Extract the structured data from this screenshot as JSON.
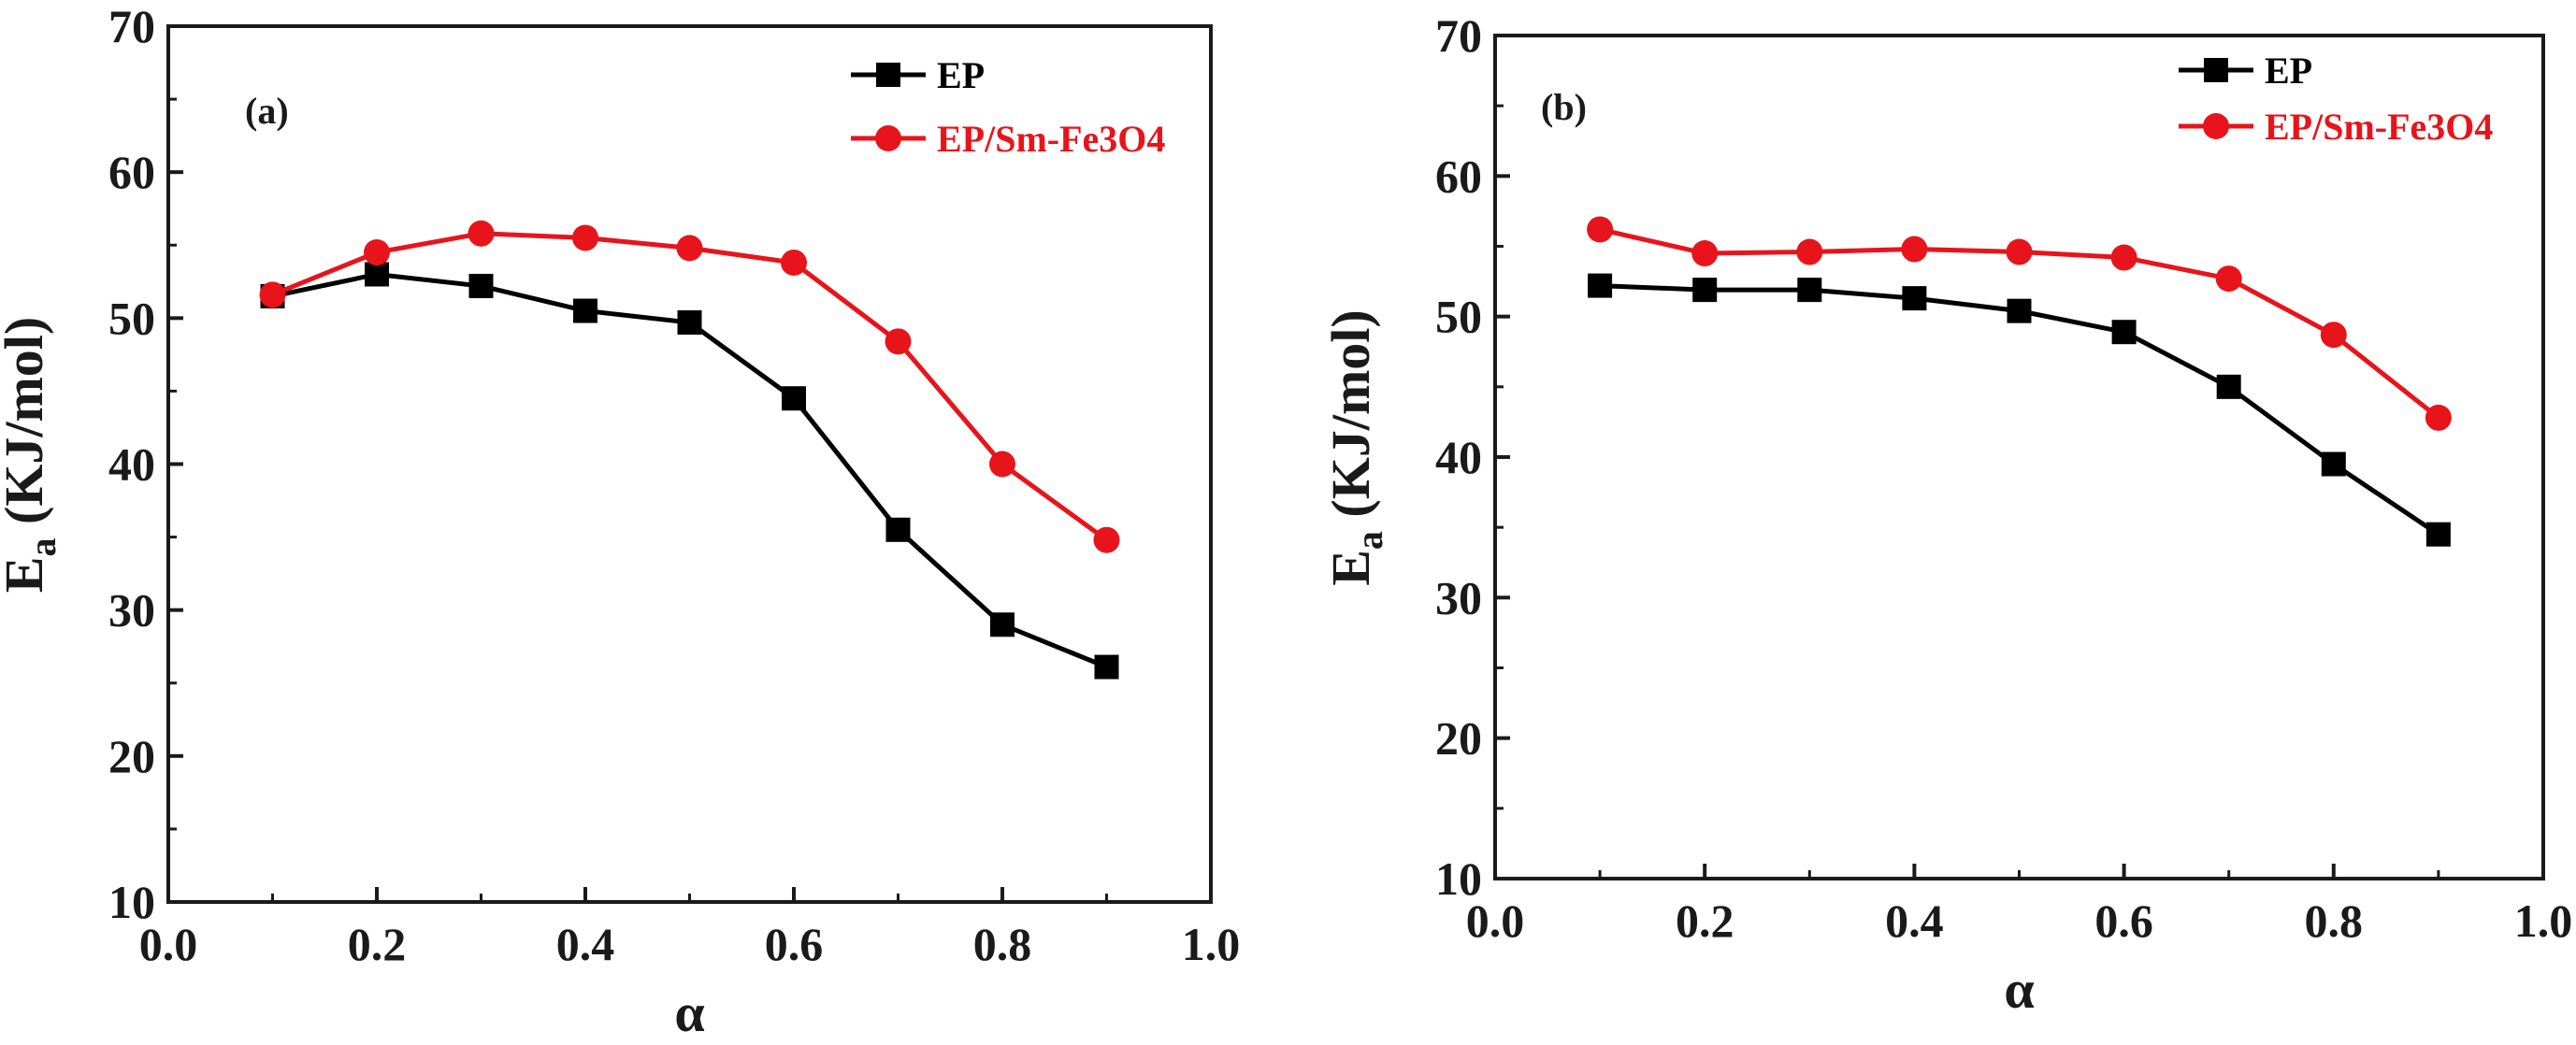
{
  "chart_data": [
    {
      "type": "line",
      "panel_label": "(a)",
      "xlabel": "α",
      "ylabel_main": "E",
      "ylabel_sub": "a",
      "ylabel_rest": " (KJ/mol)",
      "xlim": [
        0.0,
        1.0
      ],
      "ylim": [
        10,
        70
      ],
      "xticks": [
        0.0,
        0.2,
        0.4,
        0.6,
        0.8,
        1.0
      ],
      "xtick_labels": [
        "0.0",
        "0.2",
        "0.4",
        "0.6",
        "0.8",
        "1.0"
      ],
      "yticks": [
        10,
        20,
        30,
        40,
        50,
        60,
        70
      ],
      "ytick_labels": [
        "10",
        "20",
        "30",
        "40",
        "50",
        "60",
        "70"
      ],
      "x": [
        0.1,
        0.2,
        0.3,
        0.4,
        0.5,
        0.6,
        0.7,
        0.8,
        0.9
      ],
      "series": [
        {
          "name": "EP",
          "color": "#000000",
          "marker": "square",
          "values": [
            51.5,
            53.0,
            52.2,
            50.5,
            49.7,
            44.5,
            35.5,
            29.0,
            26.1
          ]
        },
        {
          "name": "EP/Sm-Fe3O4",
          "color": "#e8141b",
          "marker": "circle",
          "values": [
            51.6,
            54.5,
            55.8,
            55.5,
            54.8,
            53.8,
            48.4,
            40.0,
            34.8
          ]
        }
      ],
      "legend": "top-right"
    },
    {
      "type": "line",
      "panel_label": "(b)",
      "xlabel": "α",
      "ylabel_main": "E",
      "ylabel_sub": "a",
      "ylabel_rest": " (KJ/mol)",
      "xlim": [
        0.0,
        1.0
      ],
      "ylim": [
        10,
        70
      ],
      "xticks": [
        0.0,
        0.2,
        0.4,
        0.6,
        0.8,
        1.0
      ],
      "xtick_labels": [
        "0.0",
        "0.2",
        "0.4",
        "0.6",
        "0.8",
        "1.0"
      ],
      "yticks": [
        10,
        20,
        30,
        40,
        50,
        60,
        70
      ],
      "ytick_labels": [
        "10",
        "20",
        "30",
        "40",
        "50",
        "60",
        "70"
      ],
      "x": [
        0.1,
        0.2,
        0.3,
        0.4,
        0.5,
        0.6,
        0.7,
        0.8,
        0.9
      ],
      "series": [
        {
          "name": "EP",
          "color": "#000000",
          "marker": "square",
          "values": [
            52.2,
            51.9,
            51.9,
            51.3,
            50.4,
            48.9,
            45.0,
            39.5,
            34.5
          ]
        },
        {
          "name": "EP/Sm-Fe3O4",
          "color": "#e8141b",
          "marker": "circle",
          "values": [
            56.2,
            54.5,
            54.6,
            54.8,
            54.6,
            54.2,
            52.7,
            48.7,
            42.8
          ]
        }
      ],
      "legend": "top-right"
    }
  ]
}
